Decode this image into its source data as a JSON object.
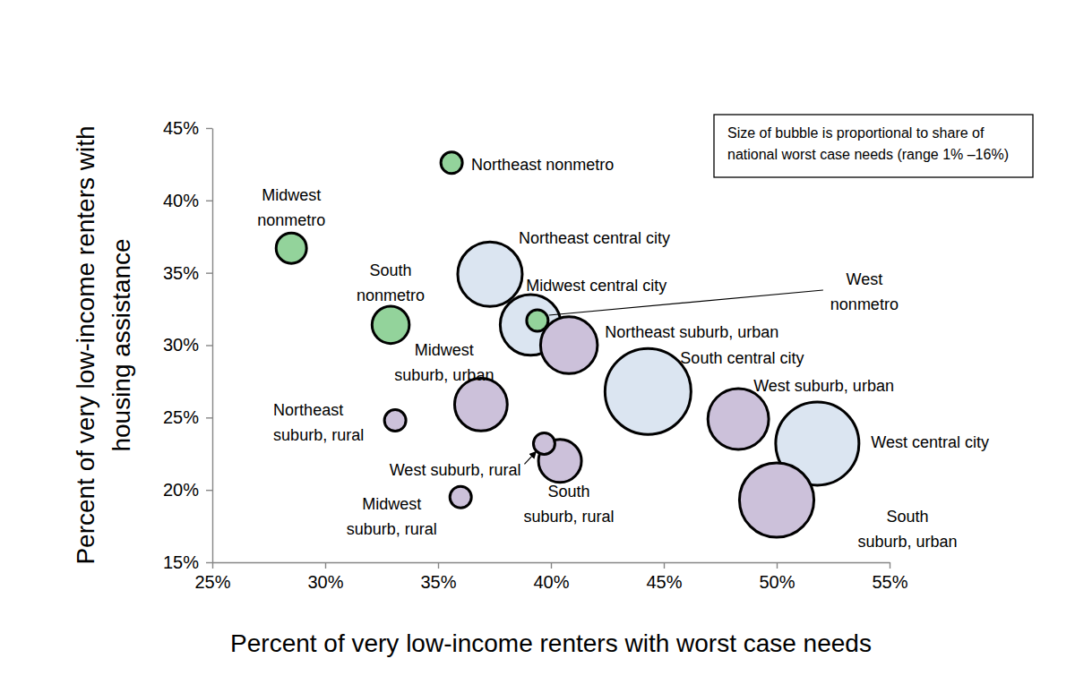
{
  "chart_data": {
    "type": "scatter",
    "x_label": "Percent of very low-income renters with worst case needs",
    "y_label": "Percent of very low-income renters with housing assistance",
    "annotation": "Size of bubble is proportional to share of national worst case needs (range 1% –16%)",
    "labels": [
      "Northeast nonmetro",
      "Midwest nonmetro",
      "South nonmetro",
      "Northeast central city",
      "Midwest central city",
      "West nonmetro",
      "Northeast suburb, urban",
      "South central city",
      "West suburb, urban",
      "West central city",
      "South suburb, urban",
      "Midwest suburb, urban",
      "Northeast suburb, rural",
      "West suburb, rural",
      "South suburb, rural",
      "Midwest suburb, rural"
    ],
    "x": [
      35.6,
      28.5,
      32.9,
      37.3,
      39.1,
      39.4,
      40.8,
      44.3,
      48.3,
      51.8,
      50.0,
      36.9,
      33.1,
      39.7,
      40.4,
      36.0
    ],
    "values": [
      42.6,
      36.7,
      31.4,
      34.9,
      31.4,
      31.7,
      30.0,
      26.8,
      24.9,
      23.2,
      19.3,
      25.9,
      24.8,
      23.2,
      22.0,
      19.5
    ],
    "sizes": [
      1,
      2,
      3,
      9,
      8,
      1,
      7,
      16,
      8,
      15,
      12,
      6,
      1,
      1,
      4,
      1
    ],
    "colors": [
      "#93d39b",
      "#93d39b",
      "#93d39b",
      "#dbe5f1",
      "#dbe5f1",
      "#93d39b",
      "#ccc1da",
      "#dbe5f1",
      "#ccc1da",
      "#dbe5f1",
      "#ccc1da",
      "#ccc1da",
      "#ccc1da",
      "#ccc1da",
      "#ccc1da",
      "#ccc1da"
    ],
    "xlim": [
      25,
      55
    ],
    "ylim": [
      15,
      45
    ],
    "xticks": [
      {
        "value": 25,
        "label": "25%"
      },
      {
        "value": 30,
        "label": "30%"
      },
      {
        "value": 35,
        "label": "35%"
      },
      {
        "value": 40,
        "label": "40%"
      },
      {
        "value": 45,
        "label": "45%"
      },
      {
        "value": 50,
        "label": "50%"
      },
      {
        "value": 55,
        "label": "55%"
      }
    ],
    "yticks": [
      {
        "value": 15,
        "label": "15%"
      },
      {
        "value": 20,
        "label": "20%"
      },
      {
        "value": 25,
        "label": "25%"
      },
      {
        "value": 30,
        "label": "30%"
      },
      {
        "value": 35,
        "label": "35%"
      },
      {
        "value": 40,
        "label": "40%"
      },
      {
        "value": 45,
        "label": "45%"
      }
    ],
    "grid": false
  }
}
